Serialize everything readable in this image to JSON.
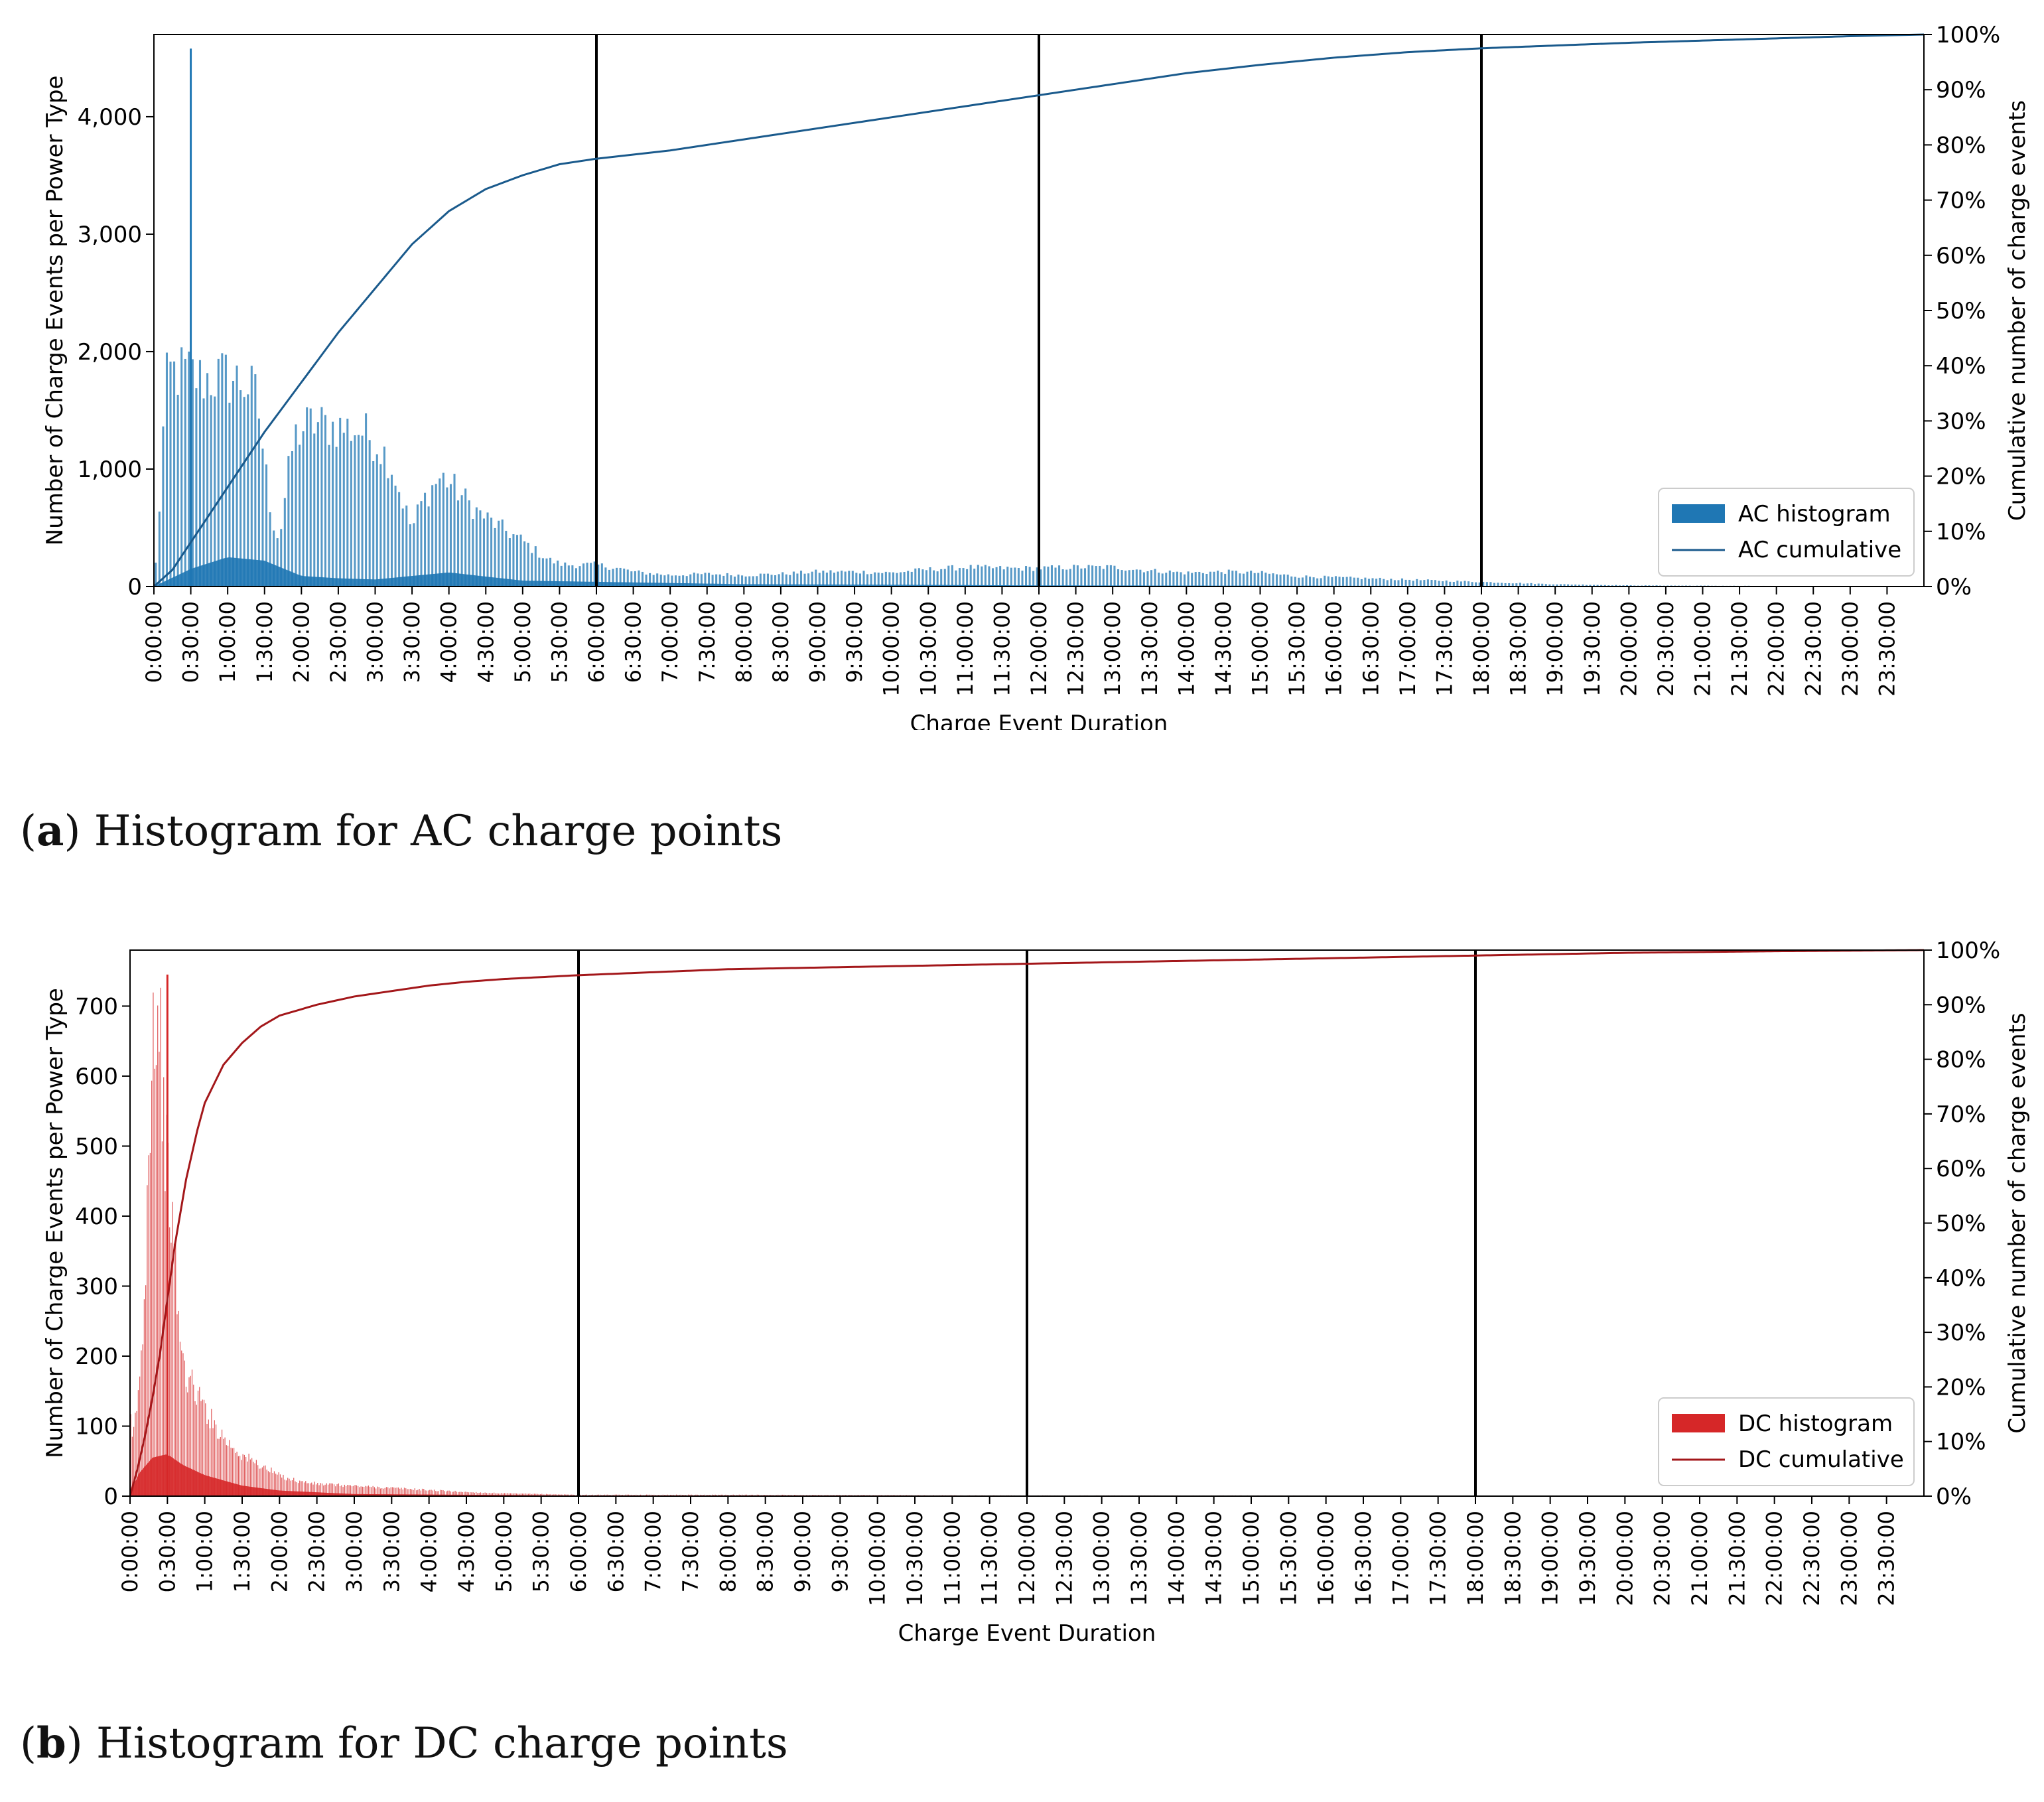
{
  "chart_data": [
    {
      "id": "a",
      "type": "bar",
      "caption_letter": "a",
      "caption_text": "Histogram for AC charge points",
      "xlabel": "Charge Event Duration",
      "ylabel": "Number of Charge Events per Power Type",
      "y2label": "Cumulative number of charge events",
      "ylim": [
        0,
        4700
      ],
      "y2lim": [
        0,
        100
      ],
      "yticks": [
        0,
        1000,
        2000,
        3000,
        4000
      ],
      "ytick_labels": [
        "0",
        "1,000",
        "2,000",
        "3,000",
        "4,000"
      ],
      "y2ticks": [
        0,
        10,
        20,
        30,
        40,
        50,
        60,
        70,
        80,
        90,
        100
      ],
      "y2tick_labels": [
        "0%",
        "10%",
        "20%",
        "30%",
        "40%",
        "50%",
        "60%",
        "70%",
        "80%",
        "90%",
        "100%"
      ],
      "xlim_hours": [
        0,
        24
      ],
      "xtick_labels": [
        "0:00:00",
        "0:30:00",
        "1:00:00",
        "1:30:00",
        "2:00:00",
        "2:30:00",
        "3:00:00",
        "3:30:00",
        "4:00:00",
        "4:30:00",
        "5:00:00",
        "5:30:00",
        "6:00:00",
        "6:30:00",
        "7:00:00",
        "7:30:00",
        "8:00:00",
        "8:30:00",
        "9:00:00",
        "9:30:00",
        "10:00:00",
        "10:30:00",
        "11:00:00",
        "11:30:00",
        "12:00:00",
        "12:30:00",
        "13:00:00",
        "13:30:00",
        "14:00:00",
        "14:30:00",
        "15:00:00",
        "15:30:00",
        "16:00:00",
        "16:30:00",
        "17:00:00",
        "17:30:00",
        "18:00:00",
        "18:30:00",
        "19:00:00",
        "19:30:00",
        "20:00:00",
        "20:30:00",
        "21:00:00",
        "21:30:00",
        "22:00:00",
        "22:30:00",
        "23:00:00",
        "23:30:00"
      ],
      "vlines_hours": [
        6,
        12,
        18
      ],
      "histogram_color": "#1f77b4",
      "cumulative_color": "#1a5a8c",
      "series": [
        {
          "name": "AC histogram",
          "kind": "histogram",
          "bin_width_hours": 0.05,
          "envelope_hours": [
            0,
            0.05,
            0.1,
            0.15,
            0.2,
            0.25,
            0.3,
            0.4,
            0.5,
            0.6,
            0.75,
            1.0,
            1.25,
            1.4,
            1.5,
            1.6,
            1.7,
            1.8,
            1.9,
            2.0,
            2.1,
            2.2,
            2.5,
            2.8,
            3.0,
            3.2,
            3.4,
            3.5,
            3.6,
            3.8,
            3.9,
            4.0,
            4.2,
            4.4,
            4.6,
            4.8,
            5.0,
            5.2,
            5.4,
            5.5,
            5.6,
            6.0,
            6.3,
            6.5,
            6.8,
            7.0,
            7.5,
            8.0,
            8.5,
            9.0,
            9.5,
            10.0,
            10.5,
            11.0,
            11.5,
            12.0,
            12.5,
            13.0,
            13.5,
            14.0,
            14.5,
            15.0,
            15.5,
            16.0,
            16.5,
            17.0,
            17.5,
            18.0,
            18.5,
            19.0,
            20.0,
            22.0,
            24.0
          ],
          "envelope_counts": [
            0,
            400,
            1000,
            1700,
            1860,
            1880,
            1870,
            1880,
            1870,
            1820,
            1830,
            1840,
            1780,
            1650,
            1100,
            600,
            400,
            900,
            1300,
            1380,
            1420,
            1430,
            1400,
            1370,
            1280,
            1100,
            700,
            500,
            700,
            900,
            960,
            920,
            780,
            650,
            560,
            480,
            400,
            300,
            220,
            200,
            190,
            190,
            160,
            130,
            110,
            100,
            110,
            100,
            110,
            130,
            130,
            120,
            150,
            170,
            160,
            160,
            170,
            170,
            140,
            120,
            130,
            120,
            90,
            80,
            70,
            60,
            50,
            40,
            30,
            20,
            10,
            5,
            0
          ],
          "spikes": [
            {
              "hour": 0.5,
              "count": 4580
            }
          ],
          "inner_hours": [
            0,
            0.2,
            0.5,
            1.0,
            1.5,
            2.0,
            2.5,
            3.0,
            4.0,
            5.0,
            6.0,
            8.0,
            12.0,
            24.0
          ],
          "inner_counts": [
            0,
            60,
            150,
            250,
            220,
            90,
            70,
            60,
            120,
            50,
            40,
            20,
            10,
            0
          ]
        },
        {
          "name": "AC cumulative",
          "kind": "cumulative_percent",
          "x_hours": [
            0,
            0.25,
            0.5,
            0.75,
            1.0,
            1.5,
            2.0,
            2.5,
            3.0,
            3.5,
            4.0,
            4.5,
            5.0,
            5.5,
            6.0,
            7.0,
            8.0,
            9.0,
            10.0,
            11.0,
            12.0,
            13.0,
            14.0,
            15.0,
            16.0,
            17.0,
            18.0,
            19.0,
            20.0,
            21.0,
            22.0,
            23.0,
            24.0
          ],
          "y_percent": [
            0,
            3,
            8,
            13,
            18,
            28,
            37,
            46,
            54,
            62,
            68,
            72,
            74.5,
            76.5,
            77.5,
            79,
            81,
            83,
            85,
            87,
            89,
            91,
            93,
            94.5,
            95.8,
            96.8,
            97.5,
            98,
            98.5,
            98.9,
            99.3,
            99.7,
            100
          ]
        }
      ]
    },
    {
      "id": "b",
      "type": "bar",
      "caption_letter": "b",
      "caption_text": "Histogram for DC charge points",
      "xlabel": "Charge Event Duration",
      "ylabel": "Number of Charge Events per Power Type",
      "y2label": "Cumulative number of charge events",
      "ylim": [
        0,
        780
      ],
      "y2lim": [
        0,
        100
      ],
      "yticks": [
        0,
        100,
        200,
        300,
        400,
        500,
        600,
        700
      ],
      "ytick_labels": [
        "0",
        "100",
        "200",
        "300",
        "400",
        "500",
        "600",
        "700"
      ],
      "y2ticks": [
        0,
        10,
        20,
        30,
        40,
        50,
        60,
        70,
        80,
        90,
        100
      ],
      "y2tick_labels": [
        "0%",
        "10%",
        "20%",
        "30%",
        "40%",
        "50%",
        "60%",
        "70%",
        "80%",
        "90%",
        "100%"
      ],
      "xlim_hours": [
        0,
        24
      ],
      "xtick_labels": [
        "0:00:00",
        "0:30:00",
        "1:00:00",
        "1:30:00",
        "2:00:00",
        "2:30:00",
        "3:00:00",
        "3:30:00",
        "4:00:00",
        "4:30:00",
        "5:00:00",
        "5:30:00",
        "6:00:00",
        "6:30:00",
        "7:00:00",
        "7:30:00",
        "8:00:00",
        "8:30:00",
        "9:00:00",
        "9:30:00",
        "10:00:00",
        "10:30:00",
        "11:00:00",
        "11:30:00",
        "12:00:00",
        "12:30:00",
        "13:00:00",
        "13:30:00",
        "14:00:00",
        "14:30:00",
        "15:00:00",
        "15:30:00",
        "16:00:00",
        "16:30:00",
        "17:00:00",
        "17:30:00",
        "18:00:00",
        "18:30:00",
        "19:00:00",
        "19:30:00",
        "20:00:00",
        "20:30:00",
        "21:00:00",
        "21:30:00",
        "22:00:00",
        "22:30:00",
        "23:00:00",
        "23:30:00"
      ],
      "vlines_hours": [
        6,
        12,
        18
      ],
      "histogram_color": "#d62728",
      "cumulative_color": "#a3171a",
      "series": [
        {
          "name": "DC histogram",
          "kind": "histogram",
          "bin_width_hours": 0.02,
          "envelope_hours": [
            0,
            0.03,
            0.1,
            0.15,
            0.2,
            0.25,
            0.3,
            0.35,
            0.4,
            0.45,
            0.5,
            0.55,
            0.6,
            0.65,
            0.7,
            0.75,
            0.8,
            0.9,
            1.0,
            1.1,
            1.2,
            1.3,
            1.5,
            1.75,
            2.0,
            2.25,
            2.5,
            3.0,
            3.5,
            4.0,
            4.5,
            5.0,
            5.5,
            6.0,
            8.0,
            12.0,
            15.0,
            24.0
          ],
          "envelope_counts": [
            120,
            80,
            140,
            200,
            320,
            520,
            700,
            710,
            690,
            560,
            470,
            420,
            350,
            260,
            200,
            180,
            170,
            150,
            130,
            110,
            95,
            80,
            60,
            45,
            30,
            22,
            18,
            15,
            12,
            9,
            6,
            4,
            3,
            2,
            2,
            1,
            1,
            0
          ],
          "spikes": [
            {
              "hour": 0.5,
              "count": 745
            }
          ],
          "inner_hours": [
            0,
            0.1,
            0.3,
            0.5,
            0.7,
            1.0,
            1.5,
            2.0,
            3.0,
            6.0,
            24.0
          ],
          "inner_counts": [
            0,
            30,
            55,
            60,
            45,
            30,
            15,
            8,
            3,
            1,
            0
          ]
        },
        {
          "name": "DC cumulative",
          "kind": "cumulative_percent",
          "x_hours": [
            0,
            0.1,
            0.2,
            0.3,
            0.4,
            0.5,
            0.6,
            0.75,
            0.9,
            1.0,
            1.25,
            1.5,
            1.75,
            2.0,
            2.5,
            3.0,
            3.5,
            4.0,
            4.5,
            5.0,
            6.0,
            8.0,
            10.0,
            12.0,
            14.0,
            16.0,
            18.0,
            20.0,
            22.0,
            24.0
          ],
          "y_percent": [
            0,
            5,
            11,
            18,
            26,
            36,
            46,
            58,
            67,
            72,
            79,
            83,
            86,
            88,
            90,
            91.5,
            92.5,
            93.5,
            94.2,
            94.7,
            95.4,
            96.5,
            97,
            97.5,
            98,
            98.5,
            99,
            99.5,
            99.8,
            100
          ]
        }
      ]
    }
  ]
}
